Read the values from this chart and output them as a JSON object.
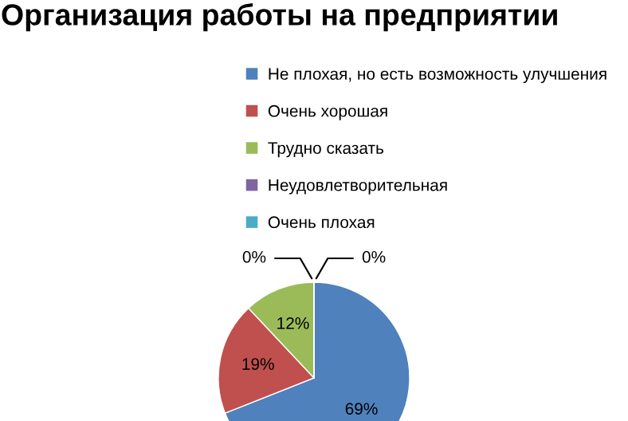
{
  "chart_data": {
    "type": "pie",
    "title": "Организация работы на предприятии",
    "categories": [
      "Не плохая, но есть возможность улучшения",
      "Очень хорошая",
      "Трудно сказать",
      "Неудовлетворительная",
      "Очень плохая"
    ],
    "values": [
      69,
      19,
      12,
      0,
      0
    ],
    "colors": [
      "#4f81bd",
      "#c0504d",
      "#9bbb59",
      "#8064a2",
      "#4bacc6"
    ],
    "value_labels": [
      "69%",
      "19%",
      "12%",
      "0%",
      "0%"
    ],
    "legend": "top"
  }
}
